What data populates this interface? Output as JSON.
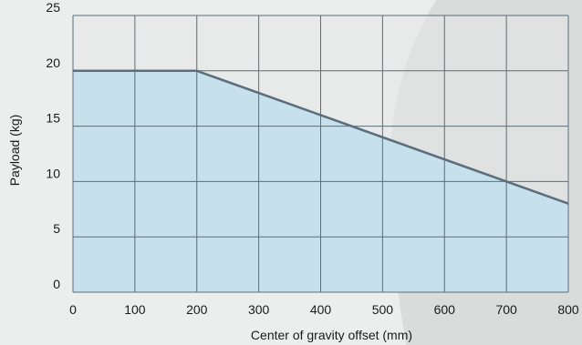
{
  "chart_data": {
    "type": "area",
    "title": "",
    "xlabel": "Center of gravity offset (mm)",
    "ylabel": "Payload (kg)",
    "xlim": [
      0,
      800
    ],
    "ylim": [
      0,
      25
    ],
    "xticks": [
      0,
      100,
      200,
      300,
      400,
      500,
      600,
      700,
      800
    ],
    "yticks": [
      0,
      5,
      10,
      15,
      20,
      25
    ],
    "grid": true,
    "legend": "none",
    "series": [
      {
        "x": [
          0,
          200,
          800
        ],
        "y": [
          20,
          20,
          8
        ]
      }
    ],
    "colors": {
      "background": "#eceeed",
      "plot_background": "#e4e7e6",
      "fill": "#c6e0ec",
      "line": "#5c6e7c",
      "grid": "#5d6d78",
      "swoosh": "#d9dcdb"
    }
  }
}
